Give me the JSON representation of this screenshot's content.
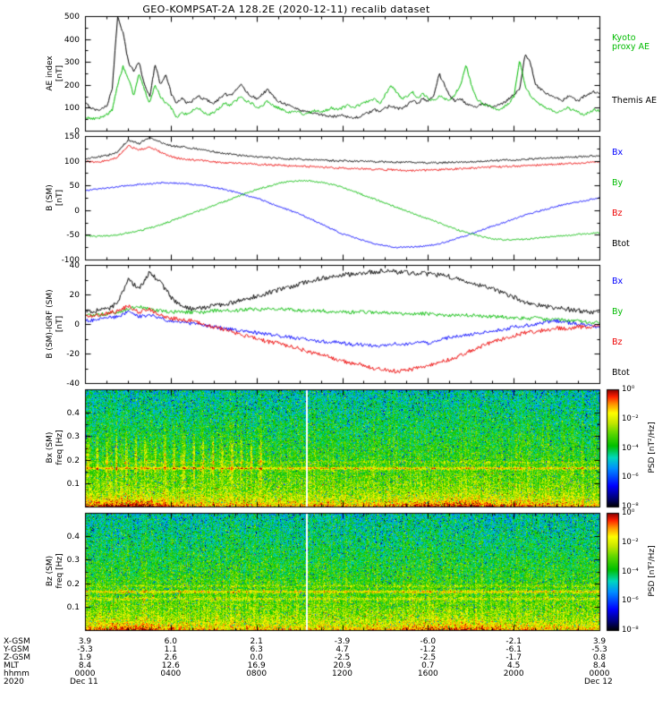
{
  "title": "GEO-KOMPSAT-2A 128.2E (2020-12-11) recalib dataset",
  "colormap": [
    [
      0,
      "#000000"
    ],
    [
      0.07,
      "#000070"
    ],
    [
      0.18,
      "#0000ff"
    ],
    [
      0.33,
      "#0090ff"
    ],
    [
      0.42,
      "#00d8c0"
    ],
    [
      0.52,
      "#00c000"
    ],
    [
      0.63,
      "#60d800"
    ],
    [
      0.72,
      "#c8e800"
    ],
    [
      0.8,
      "#ffff00"
    ],
    [
      0.88,
      "#ff9000"
    ],
    [
      0.94,
      "#ff2000"
    ],
    [
      1,
      "#8c0000"
    ]
  ],
  "footer": {
    "row_labels": [
      "X-GSM",
      "Y-GSM",
      "Z-GSM",
      "MLT",
      "hhmm",
      "2020"
    ],
    "x_gsm": [
      "3.9",
      "6.0",
      "2.1",
      "-3.9",
      "-6.0",
      "-2.1",
      "3.9"
    ],
    "y_gsm": [
      "-5.3",
      "1.1",
      "6.3",
      "4.7",
      "-1.2",
      "-6.1",
      "-5.3"
    ],
    "z_gsm": [
      "1.9",
      "2.6",
      "0.0",
      "-2.5",
      "-2.5",
      "-1.7",
      "0.8"
    ],
    "mlt": [
      "8.4",
      "12.6",
      "16.9",
      "20.9",
      "0.7",
      "4.5",
      "8.4"
    ],
    "hhmm": [
      "0000",
      "0400",
      "0800",
      "1200",
      "1600",
      "2000",
      "0000"
    ],
    "dates": [
      "Dec 11",
      "Dec 12"
    ]
  },
  "chart_data": [
    {
      "type": "line",
      "panel": "ae-index",
      "ylabel": "AE index",
      "ylabel_unit": "[nT]",
      "ylim": [
        0,
        500
      ],
      "yticks": [
        0,
        100,
        200,
        300,
        400,
        500
      ],
      "xlim_hours": [
        0,
        24
      ],
      "xticks_hours": [
        0,
        4,
        8,
        12,
        16,
        20,
        24
      ],
      "x_step_hours": 0.25,
      "legend": {
        "kyoto": [
          "Kyoto",
          "proxy AE"
        ],
        "themis": "Themis AE"
      },
      "series": [
        {
          "name": "Themis AE",
          "color": "#000000",
          "noise": 6,
          "values": [
            120,
            100,
            90,
            95,
            110,
            180,
            500,
            430,
            300,
            260,
            300,
            200,
            150,
            290,
            200,
            250,
            160,
            120,
            140,
            120,
            130,
            150,
            140,
            130,
            120,
            140,
            160,
            150,
            180,
            200,
            170,
            150,
            140,
            160,
            180,
            150,
            130,
            120,
            110,
            100,
            90,
            85,
            80,
            75,
            70,
            65,
            60,
            65,
            70,
            60,
            55,
            60,
            70,
            80,
            90,
            85,
            100,
            110,
            100,
            95,
            110,
            130,
            120,
            140,
            130,
            150,
            250,
            200,
            150,
            130,
            140,
            120,
            110,
            100,
            120,
            110,
            100,
            110,
            120,
            140,
            160,
            180,
            330,
            300,
            200,
            180,
            160,
            150,
            140,
            130,
            150,
            140,
            130,
            150,
            160,
            170,
            160
          ]
        },
        {
          "name": "Kyoto proxy AE",
          "color": "#00bb00",
          "noise": 6,
          "values": [
            60,
            50,
            55,
            60,
            70,
            90,
            200,
            280,
            230,
            150,
            250,
            180,
            120,
            200,
            150,
            120,
            100,
            60,
            80,
            70,
            90,
            100,
            80,
            70,
            80,
            100,
            120,
            110,
            130,
            150,
            130,
            120,
            100,
            110,
            130,
            110,
            100,
            90,
            80,
            90,
            80,
            70,
            80,
            90,
            80,
            90,
            100,
            90,
            100,
            110,
            100,
            110,
            120,
            130,
            140,
            120,
            160,
            200,
            170,
            140,
            150,
            170,
            140,
            160,
            140,
            130,
            150,
            140,
            130,
            160,
            200,
            290,
            200,
            140,
            120,
            110,
            100,
            90,
            100,
            120,
            150,
            310,
            200,
            150,
            130,
            110,
            100,
            90,
            80,
            90,
            100,
            90,
            80,
            70,
            80,
            90,
            85
          ]
        }
      ]
    },
    {
      "type": "line",
      "panel": "b-sm",
      "ylabel": "B (SM)",
      "ylabel_unit": "[nT]",
      "ylim": [
        -100,
        150
      ],
      "yticks": [
        -100,
        -50,
        0,
        50,
        100,
        150
      ],
      "xlim_hours": [
        0,
        24
      ],
      "xticks_hours": [
        0,
        4,
        8,
        12,
        16,
        20,
        24
      ],
      "x_step_hours": 0.5,
      "legend": [
        "Bx",
        "By",
        "Bz",
        "Btot"
      ],
      "series": [
        {
          "name": "Bx",
          "color": "#0000ff",
          "noise": 1.5,
          "values": [
            40,
            42,
            45,
            47,
            50,
            52,
            53,
            55,
            55,
            54,
            52,
            50,
            46,
            42,
            36,
            30,
            24,
            16,
            8,
            0,
            -8,
            -18,
            -28,
            -38,
            -48,
            -55,
            -62,
            -68,
            -72,
            -75,
            -75,
            -74,
            -72,
            -68,
            -62,
            -55,
            -48,
            -40,
            -32,
            -25,
            -18,
            -10,
            -4,
            2,
            8,
            13,
            17,
            21,
            25
          ]
        },
        {
          "name": "By",
          "color": "#00bb00",
          "noise": 1.5,
          "values": [
            -52,
            -53,
            -52,
            -50,
            -46,
            -42,
            -36,
            -30,
            -22,
            -14,
            -6,
            2,
            10,
            18,
            26,
            34,
            42,
            48,
            54,
            58,
            60,
            59,
            56,
            52,
            46,
            38,
            30,
            22,
            14,
            6,
            -2,
            -10,
            -18,
            -26,
            -34,
            -42,
            -48,
            -54,
            -58,
            -60,
            -60,
            -59,
            -57,
            -55,
            -53,
            -51,
            -49,
            -47,
            -46
          ]
        },
        {
          "name": "Bz",
          "color": "#ee0000",
          "noise": 2,
          "values": [
            98,
            97,
            100,
            108,
            130,
            122,
            128,
            118,
            108,
            104,
            102,
            100,
            98,
            96,
            95,
            94,
            93,
            92,
            91,
            90,
            89,
            88,
            87,
            86,
            85,
            84,
            84,
            83,
            82,
            81,
            80,
            80,
            81,
            82,
            83,
            84,
            85,
            86,
            87,
            88,
            89,
            90,
            91,
            92,
            93,
            94,
            95,
            96,
            97
          ]
        },
        {
          "name": "Btot",
          "color": "#000000",
          "noise": 2,
          "values": [
            105,
            108,
            110,
            118,
            142,
            135,
            148,
            138,
            130,
            128,
            125,
            122,
            118,
            115,
            112,
            110,
            108,
            106,
            105,
            104,
            103,
            102,
            101,
            100,
            100,
            99,
            99,
            98,
            98,
            97,
            97,
            96,
            96,
            96,
            97,
            97,
            98,
            99,
            100,
            101,
            102,
            103,
            104,
            105,
            106,
            107,
            108,
            109,
            110
          ]
        }
      ]
    },
    {
      "type": "line",
      "panel": "b-sm-minus-igrf",
      "ylabel": "B (SM)-IGRF (SM)",
      "ylabel_unit": "[nT]",
      "ylim": [
        -40,
        40
      ],
      "yticks": [
        -40,
        -20,
        0,
        20,
        40
      ],
      "xlim_hours": [
        0,
        24
      ],
      "xticks_hours": [
        0,
        4,
        8,
        12,
        16,
        20,
        24
      ],
      "x_step_hours": 0.5,
      "legend": [
        "Bx",
        "By",
        "Bz",
        "Btot"
      ],
      "series": [
        {
          "name": "Bx",
          "color": "#0000ff",
          "noise": 1.2,
          "values": [
            2,
            3,
            4,
            5,
            8,
            5,
            6,
            4,
            2,
            1,
            0,
            -1,
            -2,
            -3,
            -4,
            -5,
            -6,
            -7,
            -8,
            -9,
            -10,
            -11,
            -12,
            -12,
            -13,
            -14,
            -14,
            -15,
            -14,
            -13,
            -14,
            -12,
            -13,
            -11,
            -9,
            -8,
            -7,
            -6,
            -5,
            -4,
            -2,
            -1,
            0,
            1,
            2,
            1,
            0,
            -1,
            -2
          ]
        },
        {
          "name": "By",
          "color": "#00bb00",
          "noise": 1.2,
          "values": [
            6,
            6,
            7,
            8,
            10,
            12,
            10,
            9,
            8,
            8,
            8,
            8,
            9,
            9,
            9,
            10,
            10,
            10,
            10,
            10,
            9,
            9,
            9,
            8,
            8,
            8,
            8,
            8,
            8,
            7,
            7,
            7,
            7,
            6,
            6,
            6,
            6,
            5,
            5,
            5,
            4,
            4,
            4,
            3,
            3,
            2,
            2,
            1,
            1
          ]
        },
        {
          "name": "Bz",
          "color": "#ee0000",
          "noise": 1.4,
          "values": [
            5,
            6,
            7,
            9,
            12,
            8,
            10,
            6,
            4,
            3,
            2,
            0,
            -2,
            -4,
            -6,
            -8,
            -10,
            -12,
            -13,
            -15,
            -17,
            -19,
            -21,
            -23,
            -25,
            -27,
            -28,
            -30,
            -31,
            -32,
            -31,
            -30,
            -28,
            -26,
            -24,
            -21,
            -18,
            -15,
            -12,
            -10,
            -8,
            -6,
            -5,
            -4,
            -3,
            -3,
            -2,
            -2,
            -2
          ]
        },
        {
          "name": "Btot",
          "color": "#000000",
          "noise": 1.6,
          "values": [
            8,
            9,
            10,
            14,
            30,
            24,
            35,
            28,
            18,
            12,
            10,
            11,
            12,
            13,
            15,
            17,
            19,
            21,
            23,
            25,
            27,
            29,
            31,
            32,
            33,
            34,
            35,
            35,
            36,
            35,
            35,
            34,
            34,
            33,
            32,
            30,
            28,
            26,
            24,
            21,
            18,
            15,
            13,
            12,
            11,
            10,
            9,
            8,
            8
          ]
        }
      ]
    },
    {
      "type": "heatmap",
      "panel": "spectrogram-bx",
      "ylabel": "Bx (SM)",
      "ylabel_unit": "freq [Hz]",
      "ylim": [
        0,
        0.5
      ],
      "yticks": [
        0.1,
        0.2,
        0.3,
        0.4
      ],
      "xlim_hours": [
        0,
        24
      ],
      "xticks_hours": [
        0,
        4,
        8,
        12,
        16,
        20,
        24
      ],
      "colorbar_label": "PSD [nT²/Hz]",
      "colorbar_ticks": [
        "10⁰",
        "10⁻²",
        "10⁻⁴",
        "10⁻⁶",
        "10⁻⁸"
      ],
      "seed": 11,
      "features": {
        "gap_hour": 10.33,
        "lines": [
          [
            0.165,
            1.9
          ],
          [
            0.19,
            0.5
          ]
        ],
        "waves": true,
        "env_scale": 1.0
      }
    },
    {
      "type": "heatmap",
      "panel": "spectrogram-bz",
      "ylabel": "Bz (SM)",
      "ylabel_unit": "freq [Hz]",
      "ylim": [
        0,
        0.5
      ],
      "yticks": [
        0.1,
        0.2,
        0.3,
        0.4
      ],
      "xlim_hours": [
        0,
        24
      ],
      "xticks_hours": [
        0,
        4,
        8,
        12,
        16,
        20,
        24
      ],
      "colorbar_label": "PSD [nT²/Hz]",
      "colorbar_ticks": [
        "10⁰",
        "10⁻²",
        "10⁻⁴",
        "10⁻⁶",
        "10⁻⁸"
      ],
      "seed": 23,
      "features": {
        "gap_hour": 10.33,
        "lines": [
          [
            0.165,
            1.8
          ],
          [
            0.135,
            1.0
          ],
          [
            0.19,
            0.7
          ]
        ],
        "waves": false,
        "env_scale": 0.85
      }
    }
  ]
}
